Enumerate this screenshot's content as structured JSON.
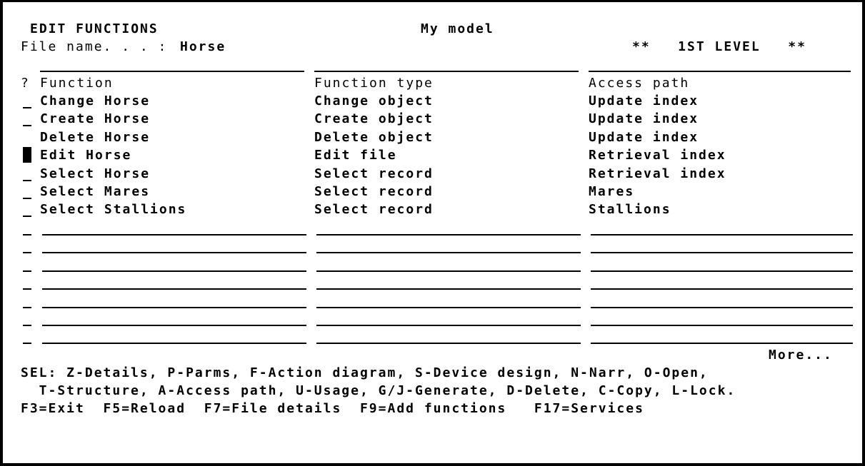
{
  "header": {
    "title": "EDIT FUNCTIONS",
    "model": "My model",
    "file_label": "File name. . . :",
    "file_name": "Horse",
    "level": "**   1ST LEVEL   **"
  },
  "columns": {
    "sel": "?",
    "function": "Function",
    "type": "Function type",
    "access": "Access path"
  },
  "rows": [
    {
      "sel": "_",
      "function": "Change Horse",
      "type": "Change object",
      "access": "Update index"
    },
    {
      "sel": "_",
      "function": "Create Horse",
      "type": "Create object",
      "access": "Update index"
    },
    {
      "sel": "",
      "function": "Delete Horse",
      "type": "Delete object",
      "access": "Update index"
    },
    {
      "sel": "cursor",
      "function": "Edit Horse",
      "type": "Edit file",
      "access": "Retrieval index"
    },
    {
      "sel": "_",
      "function": "Select Horse",
      "type": "Select record",
      "access": "Retrieval index"
    },
    {
      "sel": "_",
      "function": "Select Mares",
      "type": "Select record",
      "access": "Mares"
    },
    {
      "sel": "_",
      "function": "Select Stallions",
      "type": "Select record",
      "access": "Stallions"
    }
  ],
  "more": "More...",
  "sel_help_1": "SEL: Z-Details, P-Parms, F-Action diagram, S-Device design, N-Narr, O-Open,",
  "sel_help_2": "  T-Structure, A-Access path, U-Usage, G/J-Generate, D-Delete, C-Copy, L-Lock.",
  "fkeys": "F3=Exit  F5=Reload  F7=File details  F9=Add functions   F17=Services"
}
